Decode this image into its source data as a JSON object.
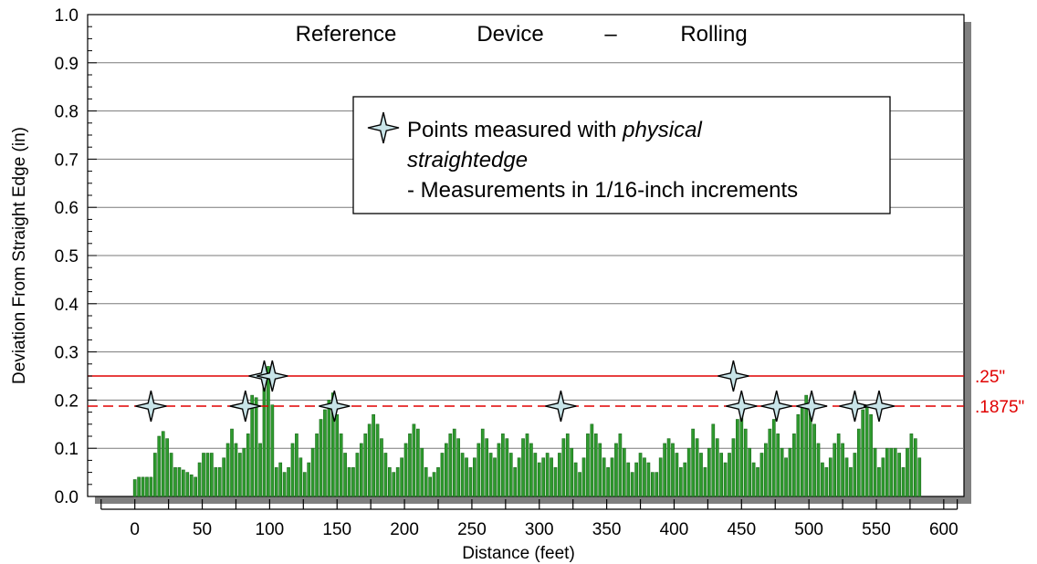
{
  "chart_data": {
    "type": "bar",
    "title_words": [
      "Reference",
      "Device",
      "–",
      "Rolling"
    ],
    "xlabel": "Distance (feet)",
    "ylabel": "Deviation From Straight Edge (in)",
    "xlim": [
      -35,
      615
    ],
    "ylim": [
      0.0,
      1.0
    ],
    "xticks": [
      0,
      50,
      100,
      150,
      200,
      250,
      300,
      350,
      400,
      450,
      500,
      550,
      600
    ],
    "yticks": [
      "0.0",
      "0.1",
      "0.2",
      "0.3",
      "0.4",
      "0.5",
      "0.6",
      "0.7",
      "0.8",
      "0.9",
      "1.0"
    ],
    "grid": "horizontal",
    "bar_color": "#2e9a2e",
    "reference_color": "#e00000",
    "reference_lines": [
      {
        "y": 0.25,
        "style": "solid",
        "label": ".25\""
      },
      {
        "y": 0.1875,
        "style": "dashed",
        "label": ".1875\""
      }
    ],
    "bar_profile": [
      [
        0,
        0.035
      ],
      [
        3,
        0.04
      ],
      [
        6,
        0.04
      ],
      [
        9,
        0.04
      ],
      [
        12,
        0.04
      ],
      [
        15,
        0.09
      ],
      [
        18,
        0.125
      ],
      [
        21,
        0.135
      ],
      [
        24,
        0.12
      ],
      [
        27,
        0.09
      ],
      [
        30,
        0.06
      ],
      [
        33,
        0.06
      ],
      [
        36,
        0.055
      ],
      [
        39,
        0.05
      ],
      [
        42,
        0.045
      ],
      [
        45,
        0.04
      ],
      [
        48,
        0.07
      ],
      [
        51,
        0.09
      ],
      [
        54,
        0.09
      ],
      [
        57,
        0.09
      ],
      [
        60,
        0.06
      ],
      [
        63,
        0.06
      ],
      [
        66,
        0.08
      ],
      [
        69,
        0.11
      ],
      [
        72,
        0.14
      ],
      [
        75,
        0.11
      ],
      [
        78,
        0.09
      ],
      [
        81,
        0.1
      ],
      [
        84,
        0.13
      ],
      [
        87,
        0.21
      ],
      [
        90,
        0.205
      ],
      [
        93,
        0.11
      ],
      [
        96,
        0.23
      ],
      [
        99,
        0.27
      ],
      [
        102,
        0.19
      ],
      [
        105,
        0.06
      ],
      [
        108,
        0.07
      ],
      [
        111,
        0.05
      ],
      [
        114,
        0.06
      ],
      [
        117,
        0.11
      ],
      [
        120,
        0.13
      ],
      [
        123,
        0.08
      ],
      [
        126,
        0.05
      ],
      [
        129,
        0.07
      ],
      [
        132,
        0.1
      ],
      [
        135,
        0.13
      ],
      [
        138,
        0.16
      ],
      [
        141,
        0.18
      ],
      [
        144,
        0.2
      ],
      [
        147,
        0.215
      ],
      [
        150,
        0.17
      ],
      [
        153,
        0.13
      ],
      [
        156,
        0.09
      ],
      [
        159,
        0.06
      ],
      [
        162,
        0.06
      ],
      [
        165,
        0.09
      ],
      [
        168,
        0.11
      ],
      [
        171,
        0.13
      ],
      [
        174,
        0.15
      ],
      [
        177,
        0.17
      ],
      [
        180,
        0.15
      ],
      [
        183,
        0.12
      ],
      [
        186,
        0.09
      ],
      [
        189,
        0.06
      ],
      [
        192,
        0.05
      ],
      [
        195,
        0.06
      ],
      [
        198,
        0.08
      ],
      [
        201,
        0.11
      ],
      [
        204,
        0.13
      ],
      [
        207,
        0.15
      ],
      [
        210,
        0.14
      ],
      [
        213,
        0.1
      ],
      [
        216,
        0.06
      ],
      [
        219,
        0.04
      ],
      [
        222,
        0.05
      ],
      [
        225,
        0.06
      ],
      [
        228,
        0.09
      ],
      [
        231,
        0.11
      ],
      [
        234,
        0.13
      ],
      [
        237,
        0.14
      ],
      [
        240,
        0.12
      ],
      [
        243,
        0.09
      ],
      [
        246,
        0.08
      ],
      [
        249,
        0.06
      ],
      [
        252,
        0.08
      ],
      [
        255,
        0.11
      ],
      [
        258,
        0.14
      ],
      [
        261,
        0.12
      ],
      [
        264,
        0.09
      ],
      [
        267,
        0.08
      ],
      [
        270,
        0.11
      ],
      [
        273,
        0.13
      ],
      [
        276,
        0.12
      ],
      [
        279,
        0.09
      ],
      [
        282,
        0.06
      ],
      [
        285,
        0.08
      ],
      [
        288,
        0.12
      ],
      [
        291,
        0.13
      ],
      [
        294,
        0.11
      ],
      [
        297,
        0.09
      ],
      [
        300,
        0.07
      ],
      [
        303,
        0.08
      ],
      [
        306,
        0.09
      ],
      [
        309,
        0.08
      ],
      [
        312,
        0.06
      ],
      [
        315,
        0.09
      ],
      [
        318,
        0.12
      ],
      [
        321,
        0.13
      ],
      [
        324,
        0.1
      ],
      [
        327,
        0.07
      ],
      [
        330,
        0.05
      ],
      [
        333,
        0.08
      ],
      [
        336,
        0.13
      ],
      [
        339,
        0.15
      ],
      [
        342,
        0.13
      ],
      [
        345,
        0.11
      ],
      [
        348,
        0.08
      ],
      [
        351,
        0.06
      ],
      [
        354,
        0.08
      ],
      [
        357,
        0.11
      ],
      [
        360,
        0.13
      ],
      [
        363,
        0.1
      ],
      [
        366,
        0.07
      ],
      [
        369,
        0.05
      ],
      [
        372,
        0.07
      ],
      [
        375,
        0.09
      ],
      [
        378,
        0.08
      ],
      [
        381,
        0.07
      ],
      [
        384,
        0.05
      ],
      [
        387,
        0.05
      ],
      [
        390,
        0.08
      ],
      [
        393,
        0.11
      ],
      [
        396,
        0.12
      ],
      [
        399,
        0.11
      ],
      [
        402,
        0.09
      ],
      [
        405,
        0.06
      ],
      [
        408,
        0.07
      ],
      [
        411,
        0.1
      ],
      [
        414,
        0.14
      ],
      [
        417,
        0.12
      ],
      [
        420,
        0.09
      ],
      [
        423,
        0.06
      ],
      [
        426,
        0.1
      ],
      [
        429,
        0.15
      ],
      [
        432,
        0.12
      ],
      [
        435,
        0.09
      ],
      [
        438,
        0.07
      ],
      [
        441,
        0.09
      ],
      [
        444,
        0.12
      ],
      [
        447,
        0.16
      ],
      [
        450,
        0.18
      ],
      [
        453,
        0.14
      ],
      [
        456,
        0.1
      ],
      [
        459,
        0.07
      ],
      [
        462,
        0.06
      ],
      [
        465,
        0.09
      ],
      [
        468,
        0.11
      ],
      [
        471,
        0.14
      ],
      [
        474,
        0.16
      ],
      [
        477,
        0.13
      ],
      [
        480,
        0.1
      ],
      [
        483,
        0.08
      ],
      [
        486,
        0.1
      ],
      [
        489,
        0.13
      ],
      [
        492,
        0.17
      ],
      [
        495,
        0.19
      ],
      [
        498,
        0.21
      ],
      [
        501,
        0.19
      ],
      [
        504,
        0.15
      ],
      [
        507,
        0.11
      ],
      [
        510,
        0.07
      ],
      [
        513,
        0.06
      ],
      [
        516,
        0.08
      ],
      [
        519,
        0.11
      ],
      [
        522,
        0.13
      ],
      [
        525,
        0.11
      ],
      [
        528,
        0.08
      ],
      [
        531,
        0.06
      ],
      [
        534,
        0.09
      ],
      [
        537,
        0.14
      ],
      [
        540,
        0.18
      ],
      [
        543,
        0.19
      ],
      [
        546,
        0.17
      ],
      [
        549,
        0.1
      ],
      [
        552,
        0.06
      ],
      [
        555,
        0.08
      ],
      [
        558,
        0.1
      ],
      [
        561,
        0.1
      ],
      [
        564,
        0.1
      ],
      [
        567,
        0.09
      ],
      [
        570,
        0.06
      ],
      [
        573,
        0.1
      ],
      [
        576,
        0.13
      ],
      [
        579,
        0.12
      ],
      [
        582,
        0.08
      ]
    ],
    "marker_points": [
      {
        "x": 12,
        "y": 0.1875
      },
      {
        "x": 82,
        "y": 0.1875
      },
      {
        "x": 96,
        "y": 0.25
      },
      {
        "x": 102,
        "y": 0.25
      },
      {
        "x": 148,
        "y": 0.1875
      },
      {
        "x": 316,
        "y": 0.1875
      },
      {
        "x": 444,
        "y": 0.25
      },
      {
        "x": 450,
        "y": 0.1875
      },
      {
        "x": 476,
        "y": 0.1875
      },
      {
        "x": 502,
        "y": 0.1875
      },
      {
        "x": 534,
        "y": 0.1875
      },
      {
        "x": 552,
        "y": 0.1875
      }
    ],
    "marker_fill": "#c8e4e8",
    "legend": {
      "marker": "four-point-star",
      "line1_prefix": "Points measured with ",
      "line1_italic": "physical",
      "line2_italic": "straightedge",
      "line3": "- Measurements in 1/16-inch increments"
    }
  }
}
